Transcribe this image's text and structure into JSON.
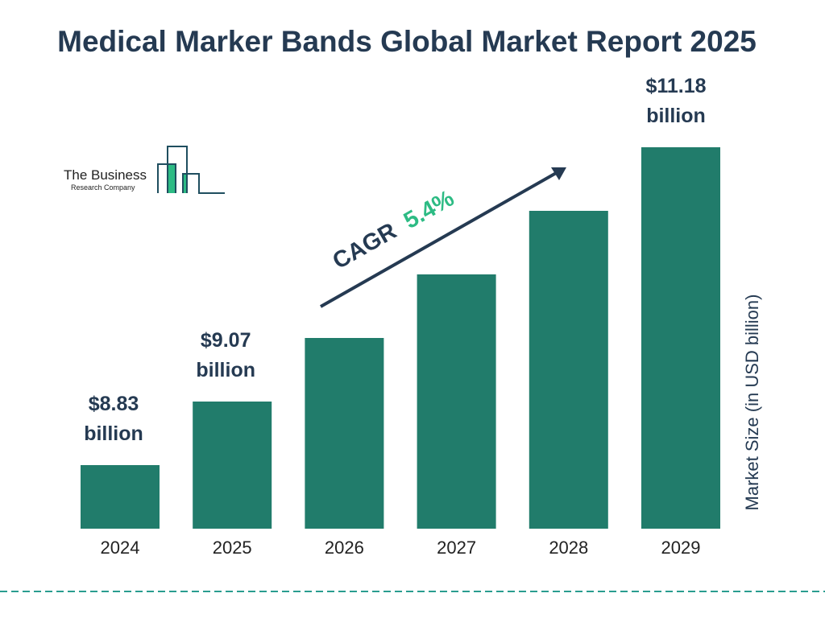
{
  "chart_data": {
    "type": "bar",
    "title": "Medical Marker Bands Global Market Report 2025",
    "categories": [
      "2024",
      "2025",
      "2026",
      "2027",
      "2028",
      "2029"
    ],
    "values": [
      8.83,
      9.07,
      null,
      null,
      null,
      11.18
    ],
    "data_labels": [
      "$8.83 billion",
      "$9.07 billion",
      "",
      "",
      "",
      "$11.18 billion"
    ],
    "ylabel": "Market Size (in USD billion)",
    "xlabel": "",
    "grid": false,
    "annotation": {
      "prefix": "CAGR",
      "value": "5.4%"
    },
    "colors": {
      "bar": "#217c6b",
      "text": "#253a52",
      "accent": "#2dbb84",
      "divider": "#2a9d8f"
    }
  },
  "logo": {
    "line1": "The Business",
    "line2": "Research Company"
  }
}
